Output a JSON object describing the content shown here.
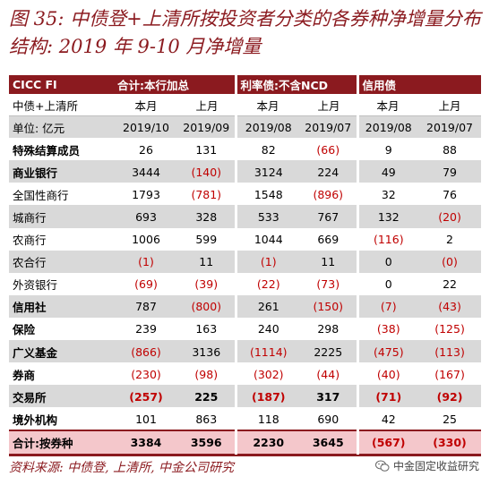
{
  "title": "图 35: 中债登+上清所按投资者分类的各券种净增量分布结构: 2019 年 9-10 月净增量",
  "header": {
    "brand": "CICC FI",
    "groups": [
      "合计:本行加总",
      "利率债:不含NCD",
      "信用债"
    ]
  },
  "subheader": {
    "label": "中债+上清所",
    "cols": [
      "本月",
      "上月",
      "本月",
      "上月",
      "本月",
      "上月"
    ]
  },
  "unit_row": {
    "label": "单位: 亿元",
    "cols": [
      "2019/10",
      "2019/09",
      "2019/08",
      "2019/07",
      "2019/08",
      "2019/07"
    ]
  },
  "rows": [
    {
      "label": "特殊结算成员",
      "bold": true,
      "shade": false,
      "values": [
        "26",
        "131",
        "82",
        "(66)",
        "9",
        "88"
      ]
    },
    {
      "label": "商业银行",
      "bold": true,
      "shade": true,
      "values": [
        "3444",
        "(140)",
        "3124",
        "224",
        "49",
        "79"
      ]
    },
    {
      "label": "全国性商行",
      "bold": false,
      "shade": false,
      "values": [
        "1793",
        "(781)",
        "1548",
        "(896)",
        "32",
        "76"
      ]
    },
    {
      "label": "城商行",
      "bold": false,
      "shade": true,
      "values": [
        "693",
        "328",
        "533",
        "767",
        "132",
        "(20)"
      ]
    },
    {
      "label": "农商行",
      "bold": false,
      "shade": false,
      "values": [
        "1006",
        "599",
        "1044",
        "669",
        "(116)",
        "2"
      ]
    },
    {
      "label": "农合行",
      "bold": false,
      "shade": true,
      "values": [
        "(1)",
        "11",
        "(1)",
        "11",
        "0",
        "(0)"
      ]
    },
    {
      "label": "外资银行",
      "bold": false,
      "shade": false,
      "values": [
        "(69)",
        "(39)",
        "(22)",
        "(73)",
        "0",
        "22"
      ]
    },
    {
      "label": "信用社",
      "bold": true,
      "shade": true,
      "values": [
        "787",
        "(800)",
        "261",
        "(150)",
        "(7)",
        "(43)"
      ]
    },
    {
      "label": "保险",
      "bold": true,
      "shade": false,
      "values": [
        "239",
        "163",
        "240",
        "298",
        "(38)",
        "(125)"
      ]
    },
    {
      "label": "广义基金",
      "bold": true,
      "shade": true,
      "values": [
        "(866)",
        "3136",
        "(1114)",
        "2225",
        "(475)",
        "(113)"
      ]
    },
    {
      "label": "券商",
      "bold": true,
      "shade": false,
      "values": [
        "(230)",
        "(98)",
        "(302)",
        "(44)",
        "(40)",
        "(167)"
      ]
    },
    {
      "label": "交易所",
      "bold": true,
      "shade": true,
      "boldvals": true,
      "values": [
        "(257)",
        "225",
        "(187)",
        "317",
        "(71)",
        "(92)"
      ]
    },
    {
      "label": "境外机构",
      "bold": true,
      "shade": false,
      "values": [
        "101",
        "863",
        "118",
        "690",
        "42",
        "25"
      ]
    }
  ],
  "total": {
    "label": "合计:按券种",
    "values": [
      "3384",
      "3596",
      "2230",
      "3645",
      "(567)",
      "(330)"
    ]
  },
  "source": "资料来源: 中债登, 上清所, 中金公司研究",
  "watermark": "中金固定收益研究",
  "colors": {
    "accent": "#8b1a1f",
    "negative": "#c00000",
    "shade": "#d9d9d9",
    "total": "#f4c7cb"
  }
}
